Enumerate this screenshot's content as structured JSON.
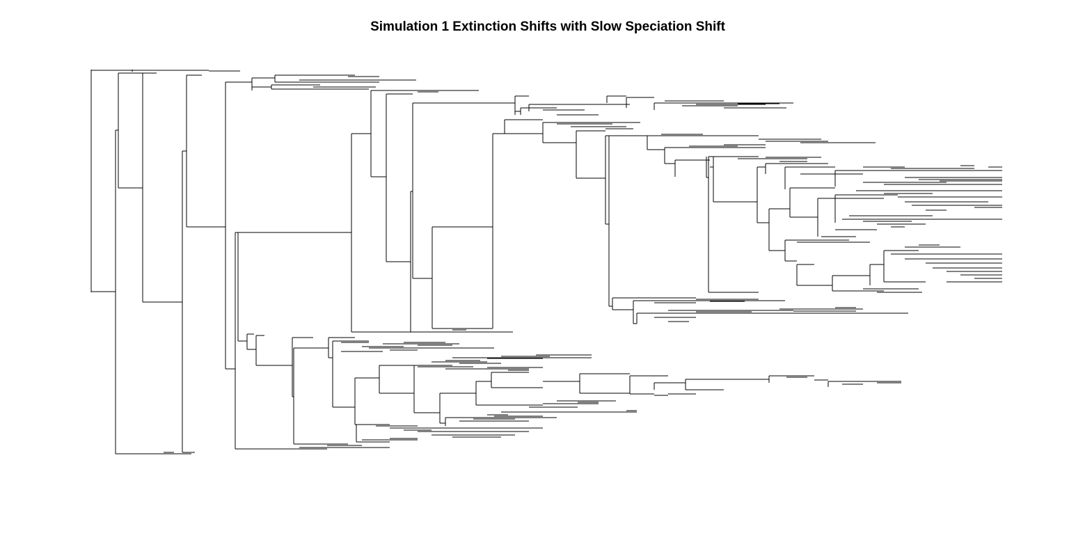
{
  "title": "Simulation 1 Extinction Shifts with Slow Speciation Shift",
  "tree": {
    "type": "phylogeny",
    "layout": "rectangular",
    "tip_labels_shown": false,
    "edge_color": "#000000"
  }
}
